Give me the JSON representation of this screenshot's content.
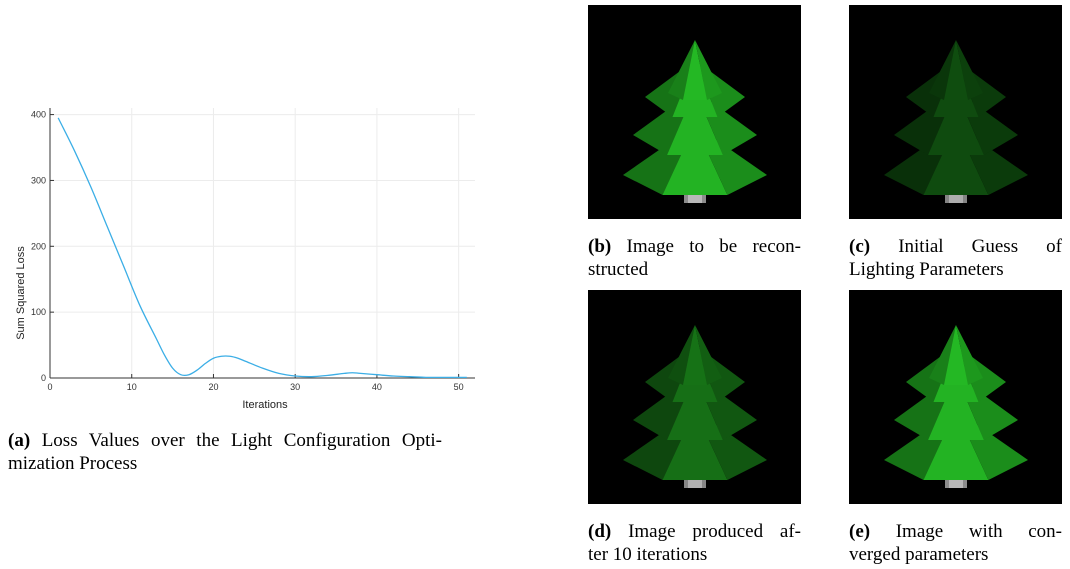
{
  "chart_data": {
    "type": "line",
    "xlabel": "Iterations",
    "ylabel": "Sum Squared Loss",
    "xlim": [
      0,
      52
    ],
    "ylim": [
      0,
      410
    ],
    "x_ticks": [
      0,
      10,
      20,
      30,
      40,
      50
    ],
    "y_ticks": [
      0,
      100,
      200,
      300,
      400
    ],
    "grid": true,
    "series_color": "#3BAEE6",
    "x": [
      1,
      3,
      5,
      7,
      9,
      11,
      13,
      14,
      15,
      16,
      17,
      18,
      19,
      20,
      21,
      22,
      23,
      24,
      26,
      28,
      30,
      32,
      34,
      36,
      37,
      38,
      40,
      42,
      44,
      46,
      48,
      50,
      51
    ],
    "y": [
      395,
      345,
      290,
      230,
      170,
      110,
      60,
      35,
      15,
      5,
      5,
      12,
      22,
      30,
      33,
      33,
      30,
      25,
      15,
      7,
      3,
      2,
      4,
      7,
      8,
      7,
      5,
      3,
      2,
      1,
      1,
      1,
      1
    ]
  },
  "captions": {
    "a": {
      "label": "(a)",
      "text": "Loss Values over the Light Configuration Opti-",
      "text2": "mization Process"
    },
    "b": {
      "label": "(b)",
      "text": "Image to be recon-",
      "text2": "structed"
    },
    "c": {
      "label": "(c)",
      "text": "Initial Guess of",
      "text2": "Lighting Parameters"
    },
    "d": {
      "label": "(d)",
      "text": "Image produced af-",
      "text2": "ter 10 iterations"
    },
    "e": {
      "label": "(e)",
      "text": "Image with con-",
      "text2": "verged parameters"
    }
  },
  "panels": {
    "b": {
      "brightness": 1.0
    },
    "c": {
      "brightness": 0.42
    },
    "d": {
      "brightness": 0.62
    },
    "e": {
      "brightness": 1.0
    }
  },
  "colors": {
    "tree_green": "#1FA01F",
    "trunk_gray": "#8C8C8C",
    "background": "#000000"
  }
}
